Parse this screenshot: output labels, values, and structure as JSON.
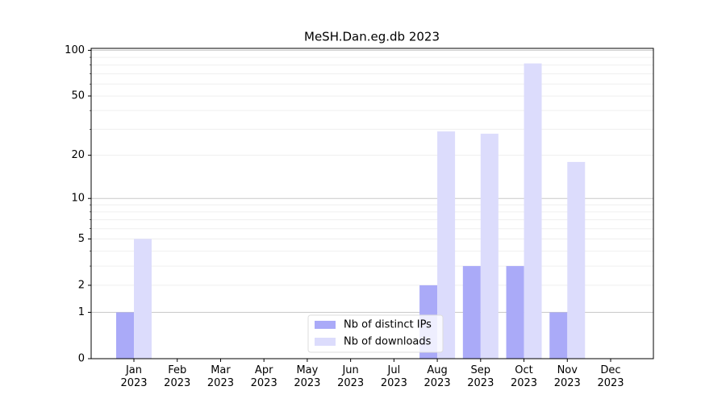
{
  "chart_data": {
    "type": "bar",
    "title": "MeSH.Dan.eg.db 2023",
    "categories": [
      "Jan\n2023",
      "Feb\n2023",
      "Mar\n2023",
      "Apr\n2023",
      "May\n2023",
      "Jun\n2023",
      "Jul\n2023",
      "Aug\n2023",
      "Sep\n2023",
      "Oct\n2023",
      "Nov\n2023",
      "Dec\n2023"
    ],
    "series": [
      {
        "name": "Nb of distinct IPs",
        "color": "#aaaaf8",
        "values": [
          1,
          0,
          0,
          0,
          0,
          0,
          0,
          2,
          3,
          3,
          1,
          0
        ]
      },
      {
        "name": "Nb of downloads",
        "color": "#dcdcfc",
        "values": [
          5,
          0,
          0,
          0,
          0,
          0,
          0,
          29,
          28,
          82,
          18,
          0
        ]
      }
    ],
    "yscale": "log1p",
    "ylim": [
      0,
      103
    ],
    "yticks": [
      0,
      1,
      2,
      5,
      10,
      20,
      50,
      100
    ],
    "ygrid": [
      1,
      2,
      3,
      4,
      5,
      6,
      7,
      8,
      9,
      10,
      20,
      30,
      40,
      50,
      60,
      70,
      80,
      90,
      100
    ],
    "legend": "lower center"
  }
}
